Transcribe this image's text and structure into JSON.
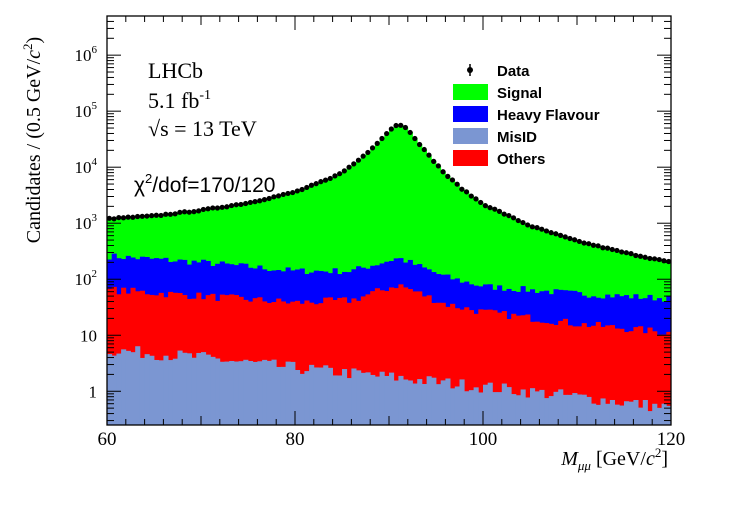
{
  "chart_data": {
    "type": "stacked-histogram",
    "yscale": "log",
    "xlim": [
      60,
      120
    ],
    "ylim": [
      0.25,
      5000000
    ],
    "bin_width": 0.5,
    "x_tick_labels": [
      "60",
      "80",
      "100",
      "120"
    ],
    "x_tick_values": [
      60,
      80,
      100,
      120
    ],
    "y_tick_labels": [
      {
        "base": "1",
        "exp": "",
        "value": 1
      },
      {
        "base": "10",
        "exp": "",
        "value": 10
      },
      {
        "base": "10",
        "exp": "2",
        "value": 100
      },
      {
        "base": "10",
        "exp": "3",
        "value": 1000
      },
      {
        "base": "10",
        "exp": "4",
        "value": 10000
      },
      {
        "base": "10",
        "exp": "5",
        "value": 100000
      },
      {
        "base": "10",
        "exp": "6",
        "value": 1000000
      }
    ],
    "xlabel": {
      "main": "M",
      "sub": "μμ",
      "unit_open": " [GeV/",
      "unit_c": "c",
      "unit_exp": "2",
      "unit_close": "]"
    },
    "ylabel": {
      "main": "Candidates / (0.5 GeV/",
      "c": "c",
      "exp": "2",
      "close": ")"
    },
    "annotations": {
      "experiment": "LHCb",
      "lumi_value": "5.1 fb",
      "lumi_exp": "-1",
      "energy_sqrt": "√s",
      "energy_value": " = 13 TeV",
      "chi2_symbol": "χ",
      "chi2_exp": "2",
      "chi2_text": "/dof=170/120"
    },
    "legend": {
      "position": "top-right",
      "entries": [
        {
          "label": "Data",
          "marker": "point",
          "color": "#000000"
        },
        {
          "label": "Signal",
          "marker": "box",
          "color": "#00ff00"
        },
        {
          "label": "Heavy Flavour",
          "marker": "box",
          "color": "#0000ff"
        },
        {
          "label": "MisID",
          "marker": "box",
          "color": "#7b96d2"
        },
        {
          "label": "Others",
          "marker": "box",
          "color": "#ff0000"
        }
      ]
    },
    "series": [
      {
        "name": "MisID",
        "color": "#7b96d2",
        "x": [
          60,
          70,
          80,
          90,
          100,
          110,
          120
        ],
        "values": [
          5.5,
          4.0,
          2.6,
          1.8,
          1.2,
          0.8,
          0.5
        ]
      },
      {
        "name": "Others",
        "color": "#ff0000",
        "x": [
          60,
          70,
          80,
          86,
          91,
          96,
          100,
          110,
          120
        ],
        "values": [
          65,
          50,
          38,
          42,
          80,
          36,
          26,
          16,
          11
        ]
      },
      {
        "name": "Heavy Flavour",
        "color": "#0000ff",
        "x": [
          60,
          70,
          80,
          86,
          91,
          96,
          100,
          110,
          120
        ],
        "values": [
          260,
          200,
          140,
          140,
          240,
          110,
          75,
          55,
          45
        ]
      },
      {
        "name": "Signal",
        "color": "#00ff00",
        "description": "Total stacked model (top of green region)",
        "x": [
          60,
          65,
          70,
          75,
          80,
          84,
          86,
          88,
          90,
          91,
          92,
          94,
          96,
          98,
          100,
          105,
          110,
          115,
          120
        ],
        "values": [
          1200,
          1350,
          1700,
          2300,
          3600,
          6500,
          10500,
          20000,
          45000,
          60000,
          48000,
          18000,
          7500,
          3800,
          2200,
          900,
          480,
          300,
          200
        ]
      }
    ],
    "data_points": {
      "name": "Data",
      "description": "Data follows total model, one point per 0.5 GeV bin",
      "x_start": 60.25,
      "x_end": 119.75,
      "step": 0.5
    }
  }
}
